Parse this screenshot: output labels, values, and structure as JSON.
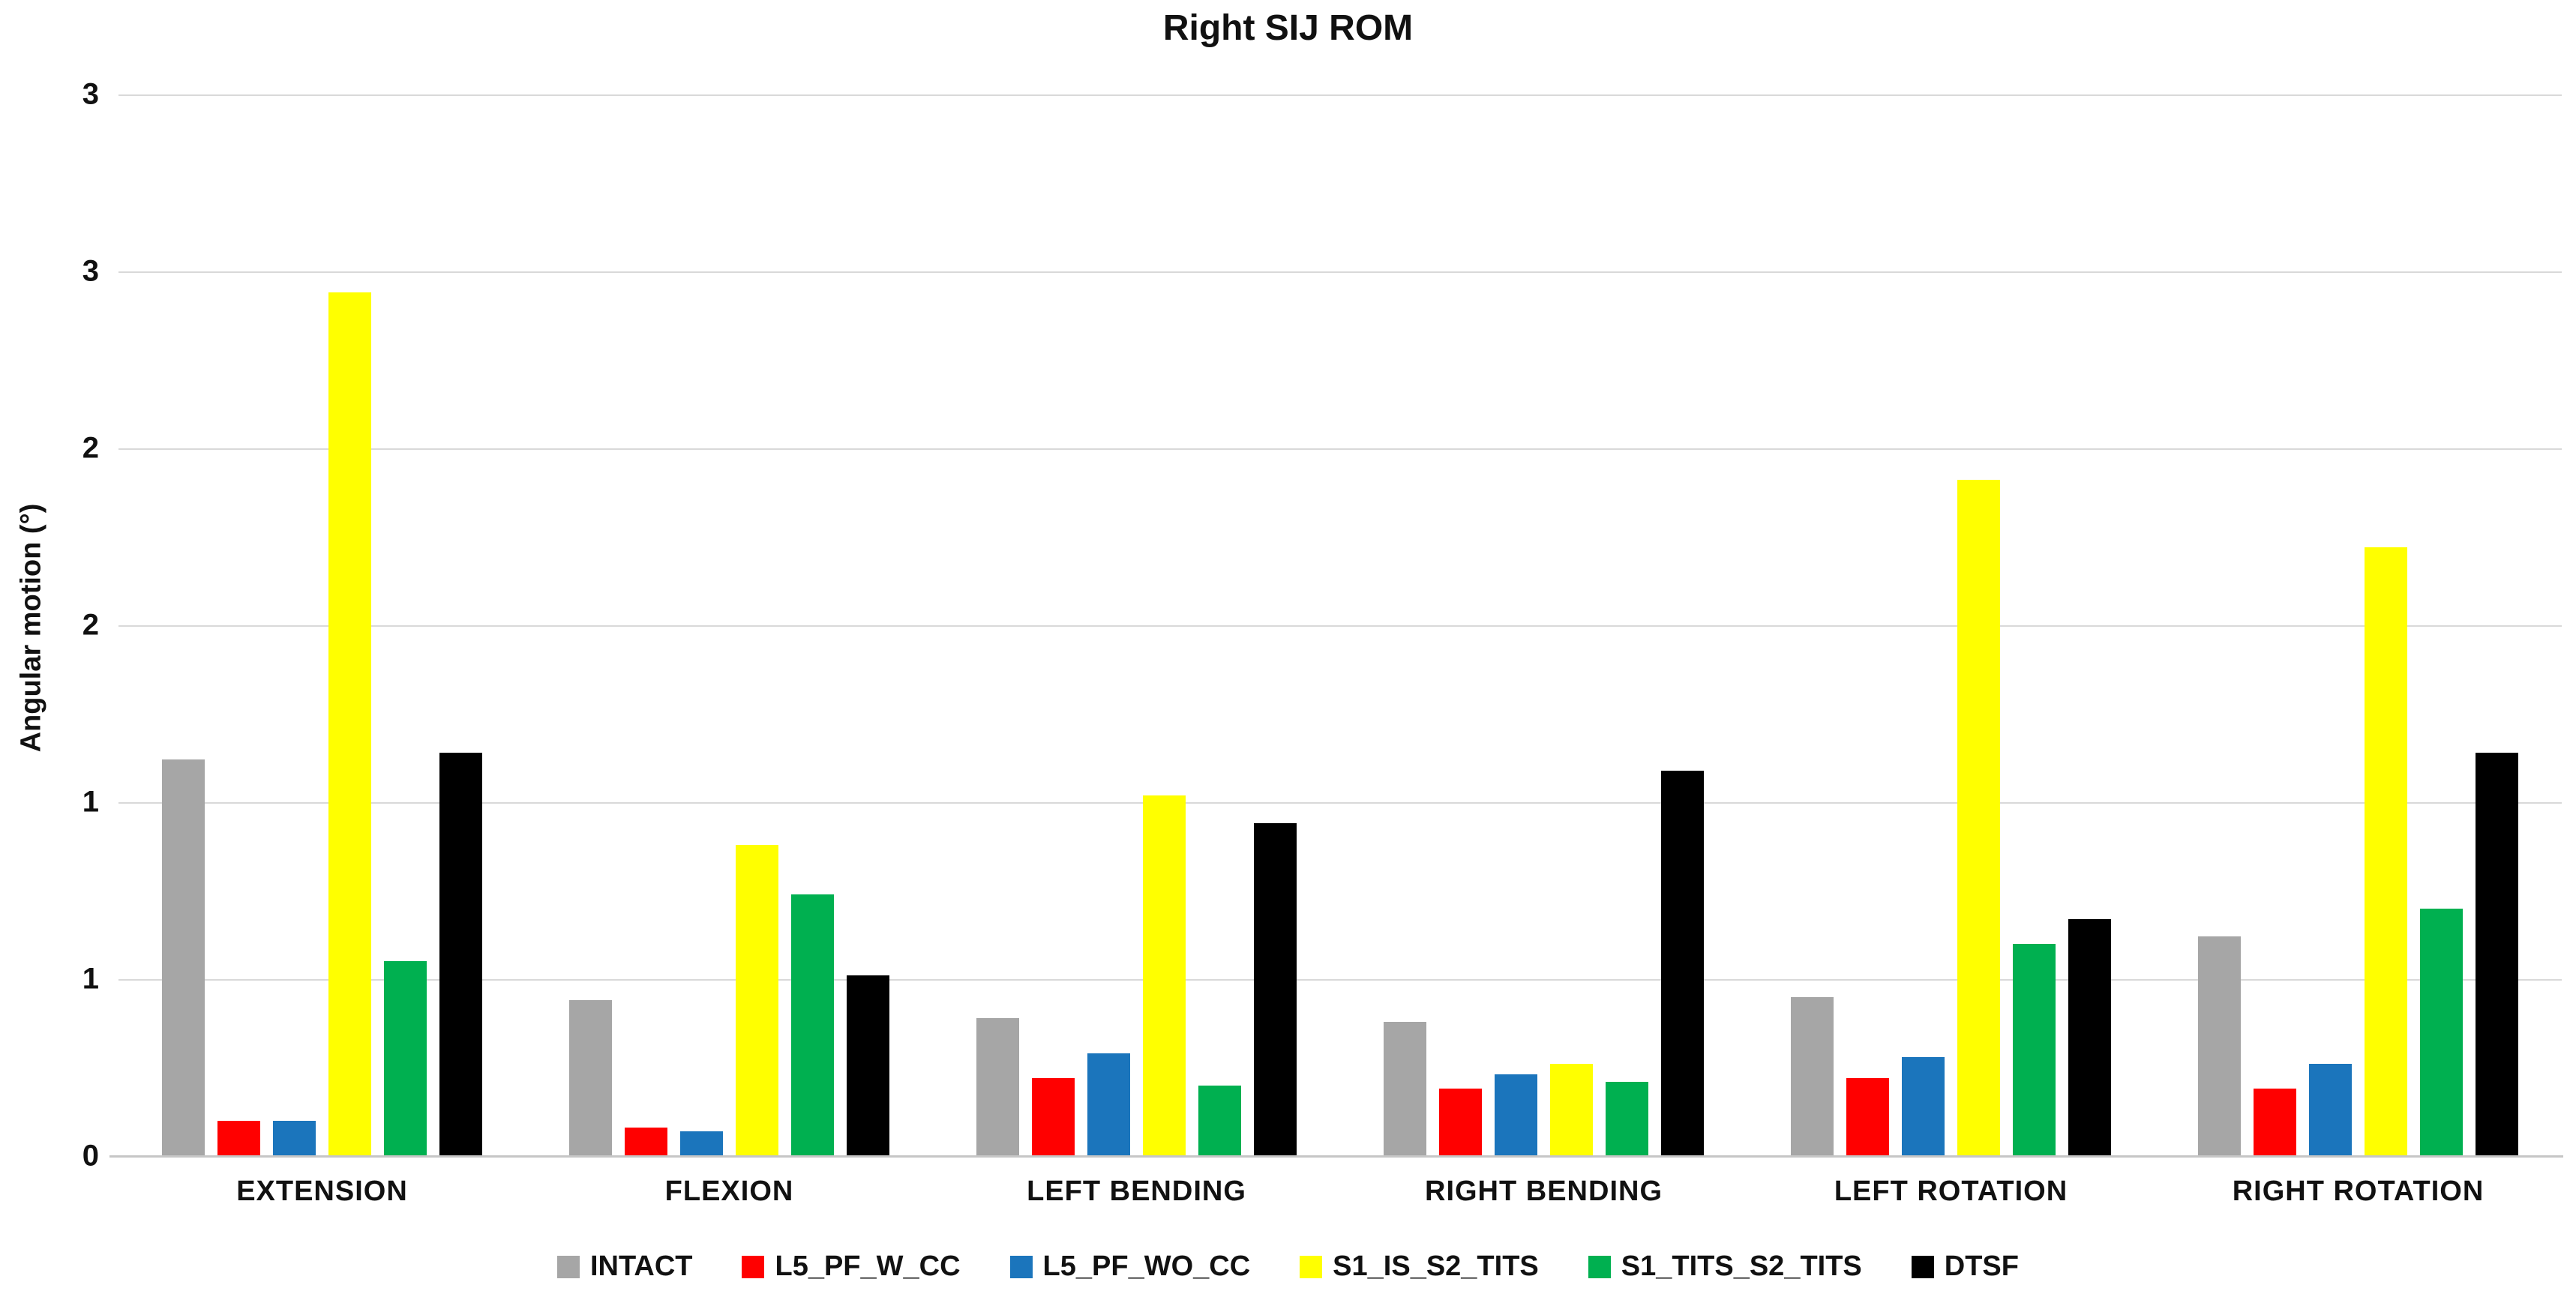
{
  "title": "Right SIJ ROM",
  "chart_data": {
    "type": "bar",
    "title": "Right SIJ ROM",
    "xlabel": "",
    "ylabel": "Angular motion (°)",
    "ylim": [
      0,
      3
    ],
    "gridline_step": 0.5,
    "grid": true,
    "legend_position": "bottom",
    "categories": [
      "EXTENSION",
      "FLEXION",
      "LEFT BENDING",
      "RIGHT BENDING",
      "LEFT ROTATION",
      "RIGHT ROTATION"
    ],
    "yticks": [
      {
        "label": "3",
        "value": 3.0
      },
      {
        "label": "3",
        "value": 2.5
      },
      {
        "label": "2",
        "value": 2.0
      },
      {
        "label": "2",
        "value": 1.5
      },
      {
        "label": "1",
        "value": 1.0
      },
      {
        "label": "1",
        "value": 0.5
      },
      {
        "label": "0",
        "value": 0.0
      }
    ],
    "series": [
      {
        "name": "INTACT",
        "color": "#A6A6A6",
        "values": [
          1.12,
          0.44,
          0.39,
          0.38,
          0.45,
          0.62
        ]
      },
      {
        "name": "L5_PF_W_CC",
        "color": "#FF0000",
        "values": [
          0.1,
          0.08,
          0.22,
          0.19,
          0.22,
          0.19
        ]
      },
      {
        "name": "L5_PF_WO_CC",
        "color": "#1B75BC",
        "values": [
          0.1,
          0.07,
          0.29,
          0.23,
          0.28,
          0.26
        ]
      },
      {
        "name": "S1_IS_S2_TITS",
        "color": "#FFFF00",
        "values": [
          2.44,
          0.88,
          1.02,
          0.26,
          1.91,
          1.72
        ]
      },
      {
        "name": "S1_TITS_S2_TITS",
        "color": "#00B050",
        "values": [
          0.55,
          0.74,
          0.2,
          0.21,
          0.6,
          0.7
        ]
      },
      {
        "name": "DTSF",
        "color": "#000000",
        "values": [
          1.14,
          0.51,
          0.94,
          1.09,
          0.67,
          1.14
        ]
      }
    ]
  },
  "colors": {
    "gridline": "#d9d9d9",
    "axis_line": "#c6c6c6",
    "text": "#111111"
  }
}
